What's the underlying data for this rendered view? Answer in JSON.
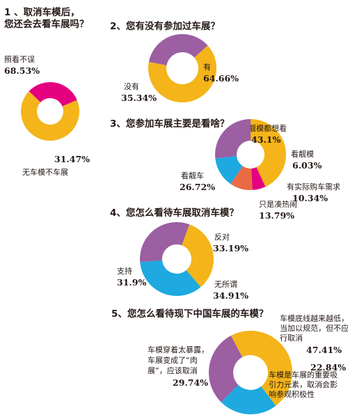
{
  "colors": {
    "orange": "#F4B41A",
    "magenta": "#E4007F",
    "purple": "#9B5FA2",
    "blue": "#1EA9E0",
    "coral": "#EA6A46"
  },
  "chart_data": [
    {
      "type": "pie",
      "title_lines": [
        "1 、取消车模后，",
        "您还会去看车展吗？"
      ],
      "slices": [
        {
          "label": [
            "照看不误"
          ],
          "value": 68.53,
          "value_text": "68.53%",
          "color": "#F4B41A"
        },
        {
          "label": [
            "无车模不车展"
          ],
          "value": 31.47,
          "value_text": "31.47%",
          "color": "#E4007F"
        }
      ]
    },
    {
      "type": "pie",
      "title_lines": [
        "2、您有没有参加过车展？"
      ],
      "slices": [
        {
          "label": [
            "有"
          ],
          "value": 64.66,
          "value_text": "64.66%",
          "color": "#F4B41A"
        },
        {
          "label": [
            "没有"
          ],
          "value": 35.34,
          "value_text": "35.34%",
          "color": "#9B5FA2"
        }
      ]
    },
    {
      "type": "pie",
      "title_lines": [
        "3、您参加车展主要是看啥？"
      ],
      "slices": [
        {
          "label": [
            "靓车靓模都想看"
          ],
          "value": 43.1,
          "value_text": "43.1%",
          "color": "#F4B41A"
        },
        {
          "label": [
            "看靓模"
          ],
          "value": 6.03,
          "value_text": "6.03%",
          "color": "#E4007F"
        },
        {
          "label": [
            "有实际购车需求"
          ],
          "value": 10.34,
          "value_text": "10.34%",
          "color": "#EA6A46"
        },
        {
          "label": [
            "只是凑热闹"
          ],
          "value": 13.79,
          "value_text": "13.79%",
          "color": "#1EA9E0"
        },
        {
          "label": [
            "看靓车"
          ],
          "value": 26.72,
          "value_text": "26.72%",
          "color": "#9B5FA2"
        }
      ]
    },
    {
      "type": "pie",
      "title_lines": [
        "4、您怎么看待车展取消车模？"
      ],
      "slices": [
        {
          "label": [
            "反对"
          ],
          "value": 33.19,
          "value_text": "33.19%",
          "color": "#F4B41A"
        },
        {
          "label": [
            "无所谓"
          ],
          "value": 34.91,
          "value_text": "34.91%",
          "color": "#1EA9E0"
        },
        {
          "label": [
            "支持"
          ],
          "value": 31.9,
          "value_text": "31.9%",
          "color": "#9B5FA2"
        }
      ]
    },
    {
      "type": "pie",
      "title_lines": [
        "5、您怎么看待现下中国车展的车模？"
      ],
      "slices": [
        {
          "label": [
            "车模底线越来越低，应",
            "当加以规范，但不应强",
            "行取消"
          ],
          "value": 47.41,
          "value_text": "47.41%",
          "color": "#F4B41A"
        },
        {
          "label": [
            "车模是车展的重要吸",
            "引力元素，取消会影",
            "响参观积极性"
          ],
          "value": 22.84,
          "value_text": "22.84%",
          "color": "#1EA9E0"
        },
        {
          "label": [
            "车模穿着太暴露，",
            "车展变成了“肉",
            "展”，应该取消"
          ],
          "value": 29.74,
          "value_text": "29.74%",
          "color": "#9B5FA2"
        }
      ]
    }
  ]
}
